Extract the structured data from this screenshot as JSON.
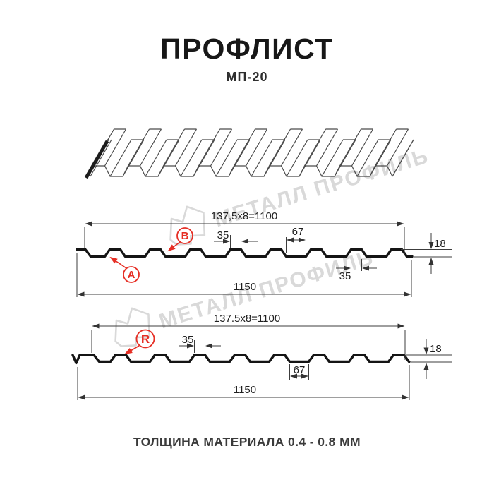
{
  "header": {
    "title": "ПРОФЛИСТ",
    "subtitle": "МП-20"
  },
  "watermark": {
    "text": "МЕТАЛЛ ПРОФИЛЬ",
    "color": "#d9d9d9"
  },
  "colors": {
    "accent_red": "#e62e24",
    "profile_line": "#141414",
    "dimension_line": "#3c3c3c"
  },
  "diagram_top": {
    "module_dimension": "137,5x8=1100",
    "rib_width_top": "35",
    "valley_width": "67",
    "height": "18",
    "rib_width_bottom": "35",
    "total_width": "1150",
    "label_a": "A",
    "label_b": "B"
  },
  "diagram_bottom": {
    "module_dimension": "137.5x8=1100",
    "rib_width": "35",
    "valley_width": "67",
    "height": "18",
    "total_width": "1150",
    "label_r": "R"
  },
  "footer": {
    "caption": "ТОЛЩИНА МАТЕРИАЛА 0.4 - 0.8 ММ"
  }
}
